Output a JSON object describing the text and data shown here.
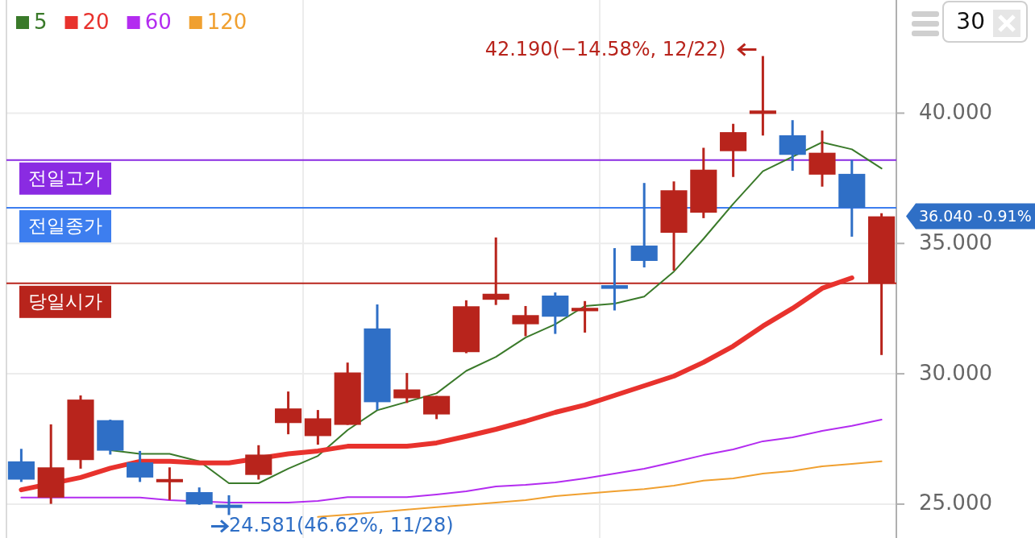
{
  "chart_data": {
    "type": "candlestick",
    "categories": [
      null,
      null,
      null,
      null,
      null,
      null,
      null,
      null,
      null,
      null,
      null,
      null,
      null,
      null,
      null,
      null,
      null,
      null,
      null,
      null,
      null,
      null,
      null,
      null,
      null,
      null,
      null,
      null,
      null,
      null
    ],
    "ohlc": [
      [
        26.64,
        27.12,
        25.85,
        25.94
      ],
      [
        25.25,
        28.06,
        25.01,
        26.41
      ],
      [
        26.69,
        29.17,
        26.36,
        29.01
      ],
      [
        28.22,
        28.24,
        26.9,
        27.05
      ],
      [
        26.6,
        27.04,
        25.85,
        26.02
      ],
      [
        25.88,
        26.41,
        25.16,
        25.92
      ],
      [
        25.46,
        25.64,
        24.97,
        24.99
      ],
      [
        24.93,
        25.34,
        24.581,
        24.9
      ],
      [
        26.12,
        27.26,
        25.94,
        26.9
      ],
      [
        28.11,
        29.32,
        27.68,
        28.67
      ],
      [
        27.61,
        28.61,
        27.28,
        28.29
      ],
      [
        28.04,
        30.43,
        28.04,
        30.05
      ],
      [
        31.74,
        32.66,
        28.61,
        28.91
      ],
      [
        29.06,
        30.03,
        28.88,
        29.4
      ],
      [
        28.44,
        29.15,
        28.26,
        29.15
      ],
      [
        30.83,
        32.82,
        30.79,
        32.59
      ],
      [
        32.84,
        35.23,
        32.64,
        33.07
      ],
      [
        31.9,
        32.6,
        31.44,
        32.25
      ],
      [
        33.0,
        33.12,
        31.53,
        32.19
      ],
      [
        32.4,
        32.79,
        31.58,
        32.53
      ],
      [
        33.4,
        34.82,
        32.43,
        33.26
      ],
      [
        34.92,
        37.32,
        34.08,
        34.33
      ],
      [
        35.41,
        37.38,
        33.96,
        37.04
      ],
      [
        36.18,
        38.67,
        35.97,
        37.83
      ],
      [
        38.54,
        39.59,
        37.55,
        39.27
      ],
      [
        39.97,
        42.19,
        39.14,
        40.1
      ],
      [
        39.15,
        39.73,
        37.79,
        38.4
      ],
      [
        37.64,
        39.33,
        37.18,
        38.48
      ],
      [
        37.67,
        38.2,
        35.26,
        36.37
      ],
      [
        33.47,
        36.16,
        30.72,
        36.04
      ]
    ],
    "colors": [
      "#2f6fc6",
      "#b8241c",
      "#b8241c",
      "#2f6fc6",
      "#2f6fc6",
      "#b8241c",
      "#2f6fc6",
      "#2f6fc6",
      "#b8241c",
      "#b8241c",
      "#b8241c",
      "#b8241c",
      "#2f6fc6",
      "#b8241c",
      "#b8241c",
      "#b8241c",
      "#b8241c",
      "#b8241c",
      "#2f6fc6",
      "#b8241c",
      "#2f6fc6",
      "#2f6fc6",
      "#b8241c",
      "#b8241c",
      "#b8241c",
      "#b8241c",
      "#2f6fc6",
      "#b8241c",
      "#2f6fc6",
      "#b8241c"
    ],
    "series": [
      {
        "type": "line",
        "name": "5",
        "color": "#3a7a2a",
        "values": [
          null,
          null,
          null,
          27.07,
          26.93,
          26.93,
          26.64,
          25.8,
          25.8,
          26.36,
          26.85,
          27.84,
          28.6,
          null,
          29.25,
          30.11,
          30.65,
          31.39,
          31.9,
          32.6,
          32.69,
          32.96,
          33.92,
          35.18,
          36.52,
          37.77,
          null,
          38.88,
          38.61,
          37.88
        ]
      },
      {
        "type": "line",
        "name": "20",
        "color": "#e8322d",
        "values": [
          25.55,
          null,
          26.02,
          26.38,
          26.64,
          26.64,
          26.58,
          26.58,
          null,
          26.93,
          27.04,
          27.22,
          27.22,
          27.22,
          27.35,
          27.6,
          27.87,
          28.18,
          28.52,
          28.8,
          29.17,
          29.54,
          29.91,
          30.44,
          31.06,
          31.83,
          32.51,
          33.28,
          33.68,
          null
        ]
      },
      {
        "type": "line",
        "name": "60",
        "color": "#b32cf0",
        "values": [
          25.25,
          25.25,
          25.25,
          25.25,
          25.25,
          25.15,
          null,
          25.06,
          25.06,
          25.06,
          25.12,
          25.27,
          25.27,
          25.27,
          25.37,
          25.49,
          25.68,
          25.74,
          25.83,
          25.99,
          26.17,
          26.36,
          26.61,
          26.88,
          27.1,
          27.41,
          27.56,
          27.81,
          28.0,
          28.24
        ]
      },
      {
        "type": "line",
        "name": "120",
        "color": "#f0a030",
        "values": [
          null,
          null,
          null,
          null,
          null,
          null,
          null,
          null,
          null,
          null,
          24.51,
          24.6,
          24.69,
          24.79,
          24.88,
          24.97,
          25.06,
          25.15,
          25.31,
          25.4,
          25.49,
          25.58,
          25.71,
          25.9,
          25.99,
          26.17,
          26.27,
          26.45,
          26.54,
          26.64
        ]
      }
    ],
    "ylim": [
      23.7,
      44.34
    ],
    "yticks": [
      {
        "value": 25,
        "label": "25.000"
      },
      {
        "value": 30,
        "label": "30.000"
      },
      {
        "value": 35,
        "label": "35.000"
      },
      {
        "value": 40,
        "label": "40.000"
      }
    ],
    "grid": "y",
    "legend": "top left",
    "ref_lines": [
      {
        "axis": "y",
        "value": 38.2,
        "label": "전일고가",
        "color": "#8a2be2"
      },
      {
        "axis": "y",
        "value": 36.37,
        "label": "전일종가",
        "color": "#3d7eef"
      },
      {
        "axis": "y",
        "value": 33.47,
        "label": "당일시가",
        "color": "#b8241c"
      }
    ],
    "annotations": [
      "42.190(−14.58%, 12/22)",
      {
        "text": "24.581(46.62%, 11/28)",
        "y": 24.581
      },
      "36.040 -0.91%",
      "30"
    ]
  }
}
